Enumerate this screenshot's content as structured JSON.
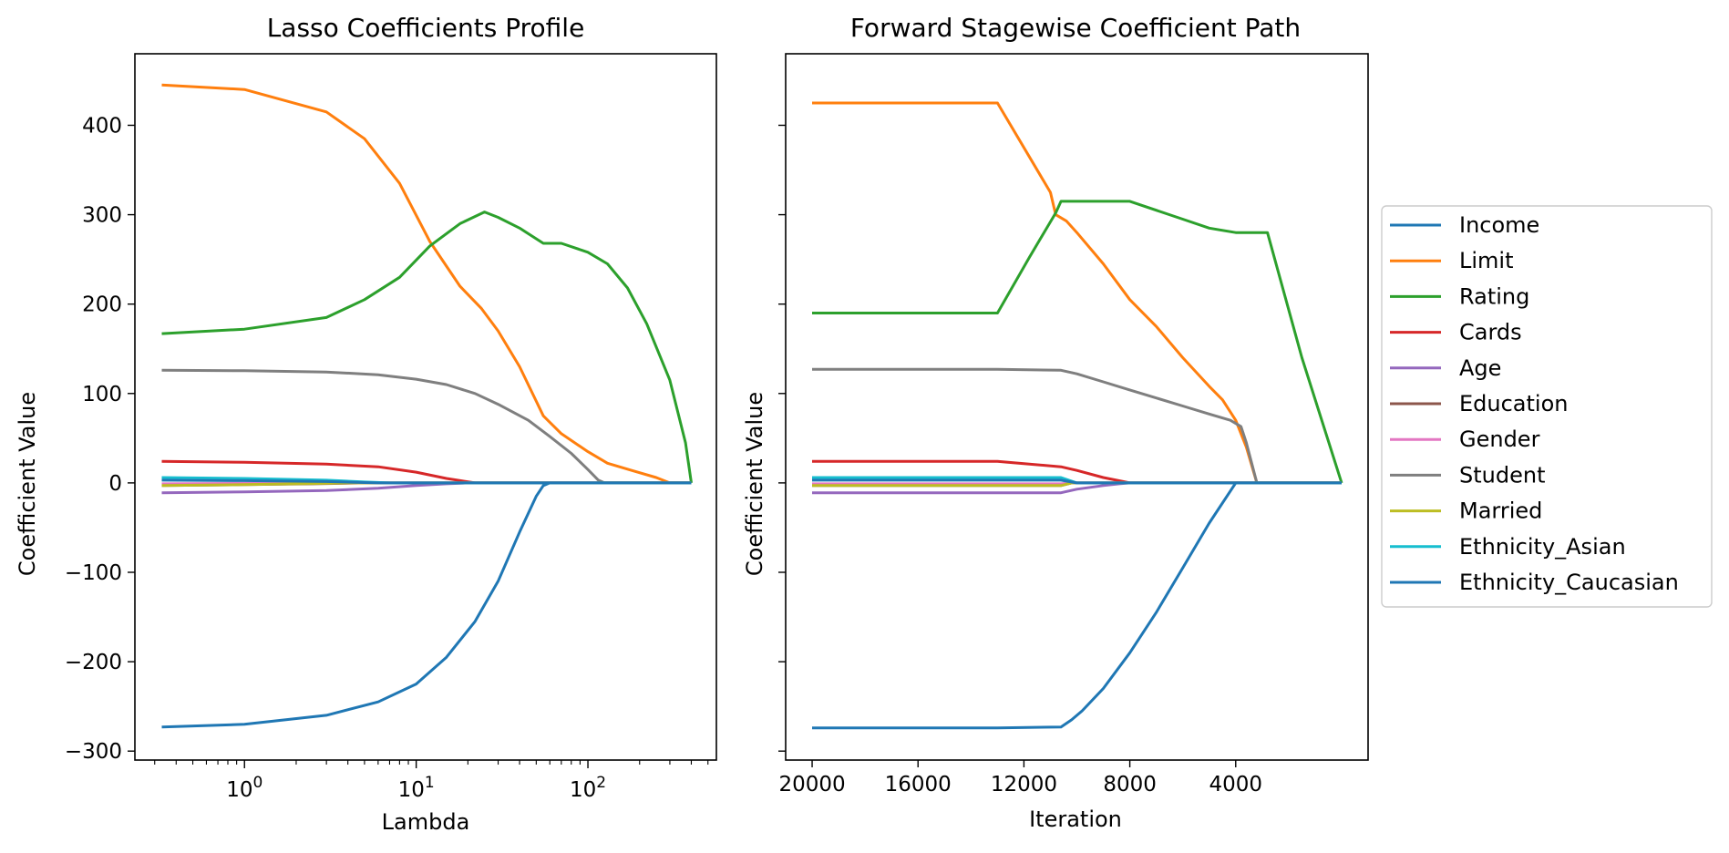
{
  "chart_data": [
    {
      "type": "line",
      "title": "Lasso Coefficients Profile",
      "xlabel": "Lambda",
      "ylabel": "Coefficient Value",
      "xscale": "log",
      "xlim": [
        0.23,
        560
      ],
      "ylim": [
        -310,
        480
      ],
      "yticks": [
        -300,
        -200,
        -100,
        0,
        100,
        200,
        300,
        400
      ],
      "ytick_labels": [
        "−300",
        "−200",
        "−100",
        "0",
        "100",
        "200",
        "300",
        "400"
      ],
      "xticks": [
        1,
        10,
        100
      ],
      "xtick_base": "10",
      "xtick_exponents": [
        "0",
        "1",
        "2"
      ],
      "grid": false,
      "series": [
        {
          "name": "Income",
          "color": "#1f77b4",
          "x": [
            0.33,
            1,
            3,
            6,
            10,
            15,
            22,
            30,
            40,
            50,
            55,
            60,
            100,
            200,
            400
          ],
          "y": [
            -273,
            -270,
            -260,
            -245,
            -225,
            -195,
            -155,
            -110,
            -55,
            -15,
            -3,
            0,
            0,
            0,
            0
          ]
        },
        {
          "name": "Limit",
          "color": "#ff7f0e",
          "x": [
            0.33,
            1,
            3,
            5,
            8,
            12,
            18,
            24,
            30,
            40,
            55,
            70,
            100,
            130,
            180,
            250,
            300,
            400
          ],
          "y": [
            445,
            440,
            415,
            385,
            335,
            270,
            220,
            195,
            170,
            130,
            75,
            55,
            35,
            22,
            14,
            6,
            0,
            0
          ]
        },
        {
          "name": "Rating",
          "color": "#2ca02c",
          "x": [
            0.33,
            1,
            3,
            5,
            8,
            12,
            18,
            25,
            30,
            40,
            55,
            70,
            100,
            130,
            170,
            220,
            300,
            370,
            400
          ],
          "y": [
            167,
            172,
            185,
            205,
            230,
            265,
            290,
            303,
            297,
            285,
            268,
            268,
            258,
            245,
            218,
            178,
            115,
            45,
            0
          ]
        },
        {
          "name": "Cards",
          "color": "#d62728",
          "x": [
            0.33,
            1,
            3,
            6,
            10,
            15,
            22,
            25,
            400
          ],
          "y": [
            24,
            23,
            21,
            18,
            12,
            5,
            0,
            0,
            0
          ]
        },
        {
          "name": "Age",
          "color": "#9467bd",
          "x": [
            0.33,
            1,
            3,
            6,
            10,
            15,
            20,
            25,
            400
          ],
          "y": [
            -11,
            -10,
            -8.5,
            -6,
            -3,
            -1,
            0,
            0,
            0
          ]
        },
        {
          "name": "Education",
          "color": "#8c564b",
          "x": [
            0.33,
            1,
            2.5,
            5,
            400
          ],
          "y": [
            -3,
            -2,
            -1,
            0,
            0
          ]
        },
        {
          "name": "Gender",
          "color": "#e377c2",
          "x": [
            0.33,
            1,
            3,
            6,
            400
          ],
          "y": [
            -1,
            -0.5,
            -0.2,
            0,
            0
          ]
        },
        {
          "name": "Student",
          "color": "#7f7f7f",
          "x": [
            0.33,
            1,
            3,
            6,
            10,
            15,
            22,
            30,
            45,
            60,
            80,
            100,
            115,
            125,
            400
          ],
          "y": [
            126,
            125.5,
            124,
            121,
            116,
            110,
            100,
            88,
            70,
            52,
            33,
            15,
            3,
            0,
            0
          ]
        },
        {
          "name": "Married",
          "color": "#bcbd22",
          "x": [
            0.33,
            1,
            2,
            4,
            400
          ],
          "y": [
            -3,
            -2,
            -1,
            0,
            0
          ]
        },
        {
          "name": "Ethnicity_Asian",
          "color": "#17becf",
          "x": [
            0.33,
            1,
            3,
            5,
            7,
            400
          ],
          "y": [
            6,
            5,
            3,
            1,
            0,
            0
          ]
        },
        {
          "name": "Ethnicity_Caucasian",
          "color": "#1f77b4",
          "x": [
            0.33,
            1,
            3,
            6,
            400
          ],
          "y": [
            3,
            2.5,
            1.5,
            0,
            0
          ]
        }
      ]
    },
    {
      "type": "line",
      "title": "Forward Stagewise Coefficient Path",
      "xlabel": "Iteration",
      "ylabel": "Coefficient Value",
      "xlim": [
        21000,
        -1000
      ],
      "ylim": [
        -310,
        480
      ],
      "xticks": [
        20000,
        16000,
        12000,
        8000,
        4000
      ],
      "xtick_labels": [
        "20000",
        "16000",
        "12000",
        "8000",
        "4000"
      ],
      "yticks": [
        -300,
        -200,
        -100,
        0,
        100,
        200,
        300,
        400
      ],
      "ytick_labels": [
        "",
        "",
        "",
        "",
        "",
        "",
        "",
        ""
      ],
      "grid": false,
      "series": [
        {
          "name": "Income",
          "color": "#1f77b4",
          "x": [
            20000,
            13000,
            10600,
            10200,
            9800,
            9000,
            8000,
            7000,
            6000,
            5000,
            4000,
            0
          ],
          "y": [
            -274,
            -274,
            -273,
            -265,
            -255,
            -230,
            -190,
            -145,
            -95,
            -45,
            0,
            0
          ]
        },
        {
          "name": "Limit",
          "color": "#ff7f0e",
          "x": [
            20000,
            13000,
            11000,
            10800,
            10400,
            10000,
            9000,
            8000,
            7000,
            6000,
            5000,
            4500,
            4000,
            3600,
            3200,
            0
          ],
          "y": [
            425,
            425,
            325,
            300,
            293,
            280,
            245,
            205,
            175,
            140,
            108,
            93,
            70,
            40,
            0,
            0
          ]
        },
        {
          "name": "Rating",
          "color": "#2ca02c",
          "x": [
            20000,
            13000,
            11800,
            10800,
            10600,
            8000,
            6000,
            5000,
            4000,
            3000,
            2800,
            1500,
            0
          ],
          "y": [
            190,
            190,
            252,
            302,
            315,
            315,
            295,
            285,
            280,
            280,
            280,
            140,
            0
          ]
        },
        {
          "name": "Cards",
          "color": "#d62728",
          "x": [
            20000,
            13000,
            10600,
            10000,
            9000,
            8000,
            7000,
            0
          ],
          "y": [
            24,
            24,
            18,
            14,
            6,
            0,
            0,
            0
          ]
        },
        {
          "name": "Age",
          "color": "#9467bd",
          "x": [
            20000,
            13000,
            10600,
            10000,
            9000,
            8400,
            8000,
            0
          ],
          "y": [
            -11,
            -11,
            -11,
            -7,
            -3,
            -1,
            0,
            0
          ]
        },
        {
          "name": "Education",
          "color": "#8c564b",
          "x": [
            20000,
            13000,
            10600,
            10200,
            0
          ],
          "y": [
            -3,
            -3,
            -3,
            0,
            0
          ]
        },
        {
          "name": "Gender",
          "color": "#e377c2",
          "x": [
            20000,
            13000,
            10600,
            10200,
            0
          ],
          "y": [
            -1,
            -1,
            -1,
            0,
            0
          ]
        },
        {
          "name": "Student",
          "color": "#7f7f7f",
          "x": [
            20000,
            13000,
            10600,
            10000,
            9000,
            8000,
            7000,
            6000,
            5000,
            4200,
            3800,
            3600,
            3200,
            0
          ],
          "y": [
            127,
            127,
            126,
            122,
            113,
            104,
            95,
            86,
            77,
            70,
            63,
            45,
            0,
            0
          ]
        },
        {
          "name": "Married",
          "color": "#bcbd22",
          "x": [
            20000,
            13000,
            10600,
            10200,
            0
          ],
          "y": [
            -3,
            -3,
            -3,
            0,
            0
          ]
        },
        {
          "name": "Ethnicity_Asian",
          "color": "#17becf",
          "x": [
            20000,
            13000,
            10600,
            10000,
            0
          ],
          "y": [
            6,
            6,
            6,
            0,
            0
          ]
        },
        {
          "name": "Ethnicity_Caucasian",
          "color": "#1f77b4",
          "x": [
            20000,
            13000,
            10600,
            10000,
            0
          ],
          "y": [
            3,
            3,
            3,
            0,
            0
          ]
        }
      ]
    }
  ],
  "legend": {
    "placement": "right",
    "entries": [
      {
        "label": "Income",
        "color": "#1f77b4"
      },
      {
        "label": "Limit",
        "color": "#ff7f0e"
      },
      {
        "label": "Rating",
        "color": "#2ca02c"
      },
      {
        "label": "Cards",
        "color": "#d62728"
      },
      {
        "label": "Age",
        "color": "#9467bd"
      },
      {
        "label": "Education",
        "color": "#8c564b"
      },
      {
        "label": "Gender",
        "color": "#e377c2"
      },
      {
        "label": "Student",
        "color": "#7f7f7f"
      },
      {
        "label": "Married",
        "color": "#bcbd22"
      },
      {
        "label": "Ethnicity_Asian",
        "color": "#17becf"
      },
      {
        "label": "Ethnicity_Caucasian",
        "color": "#1f77b4"
      }
    ]
  }
}
